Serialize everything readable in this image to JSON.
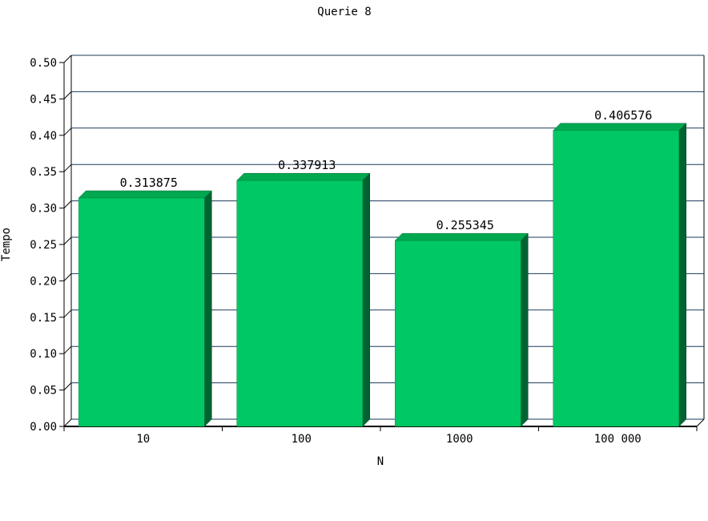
{
  "chart_data": {
    "type": "bar",
    "title": "Querie 8",
    "xlabel": "N",
    "ylabel": "Tempo",
    "categories": [
      "10",
      "100",
      "1000",
      "100 000"
    ],
    "values": [
      0.313875,
      0.337913,
      0.255345,
      0.406576
    ],
    "value_labels": [
      "0.313875",
      "0.337913",
      "0.255345",
      "0.406576"
    ],
    "ylim": [
      0,
      0.5
    ],
    "yticks": [
      "0.00",
      "0.05",
      "0.10",
      "0.15",
      "0.20",
      "0.25",
      "0.30",
      "0.35",
      "0.40",
      "0.45",
      "0.50"
    ],
    "grid": true,
    "bar_3d": true,
    "colors": {
      "bar_front": "#00c864",
      "bar_top": "#00a850",
      "bar_side": "#006432",
      "grid": "#1a3a5a"
    }
  }
}
